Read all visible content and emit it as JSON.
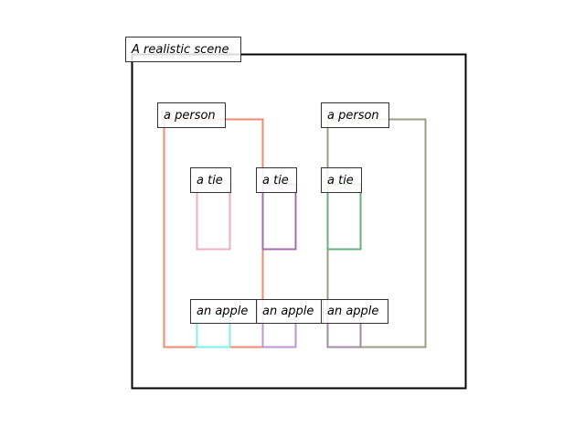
{
  "scene": {
    "title": "A realistic scene",
    "frame_color": "#000000"
  },
  "boxes": [
    {
      "id": "person-left",
      "label": "a person",
      "color": "#f08a70"
    },
    {
      "id": "person-right",
      "label": "a person",
      "color": "#9a9e82"
    },
    {
      "id": "tie-left",
      "label": "a tie",
      "color": "#e8afc4"
    },
    {
      "id": "tie-middle",
      "label": "a tie",
      "color": "#a56cac"
    },
    {
      "id": "tie-right",
      "label": "a tie",
      "color": "#6aaf80"
    },
    {
      "id": "apple-left",
      "label": "an apple",
      "color": "#7ff0e2"
    },
    {
      "id": "apple-middle",
      "label": "an apple",
      "color": "#bb96d6"
    },
    {
      "id": "apple-right",
      "label": "an apple",
      "color": "#a08aa6"
    }
  ]
}
